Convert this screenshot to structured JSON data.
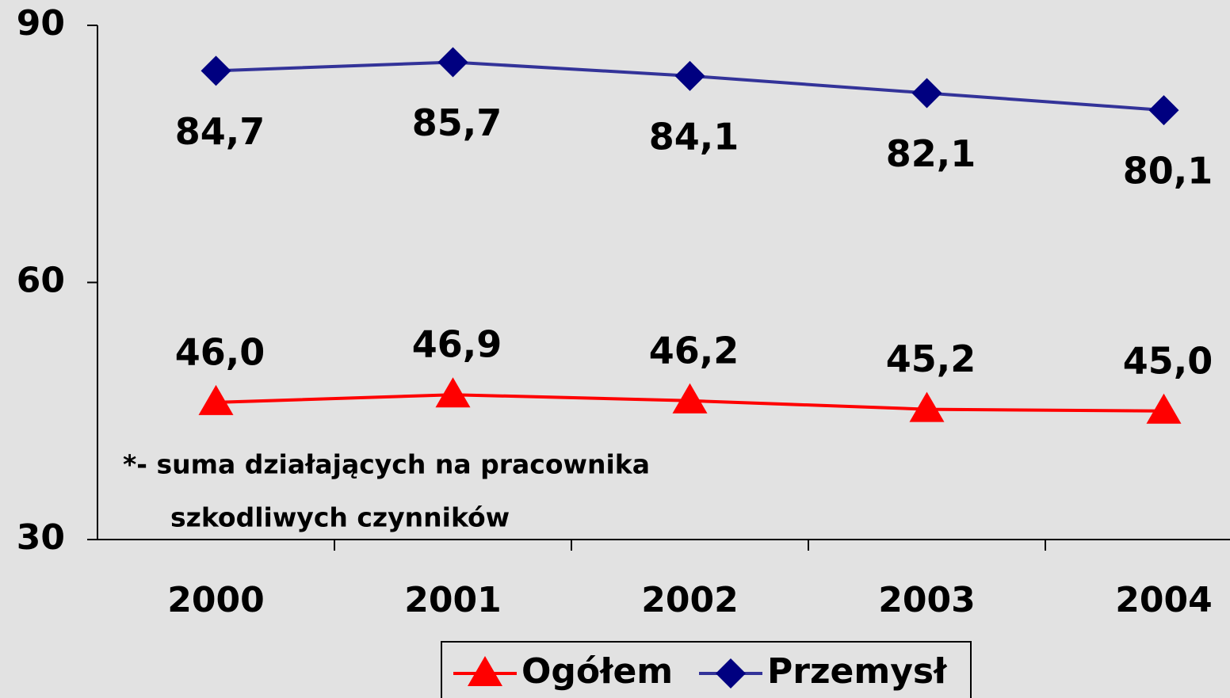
{
  "chart_data": {
    "type": "line",
    "categories": [
      "2000",
      "2001",
      "2002",
      "2003",
      "2004"
    ],
    "series": [
      {
        "name": "Ogółem",
        "color": "#ff0000",
        "marker": "triangle",
        "values": [
          46.0,
          46.9,
          46.2,
          45.2,
          45.0
        ],
        "value_labels": [
          "46,0",
          "46,9",
          "46,2",
          "45,2",
          "45,0"
        ]
      },
      {
        "name": "Przemysł",
        "color": "#333399",
        "marker": "diamond",
        "values": [
          84.7,
          85.7,
          84.1,
          82.1,
          80.1
        ],
        "value_labels": [
          "84,7",
          "85,7",
          "84,1",
          "82,1",
          "80,1"
        ]
      }
    ],
    "ylim": [
      30,
      90
    ],
    "yticks": [
      30,
      60,
      90
    ],
    "grid": false,
    "legend": "bottom",
    "annotations": [
      "*- suma działających na pracownika",
      "szkodliwych czynników"
    ]
  }
}
